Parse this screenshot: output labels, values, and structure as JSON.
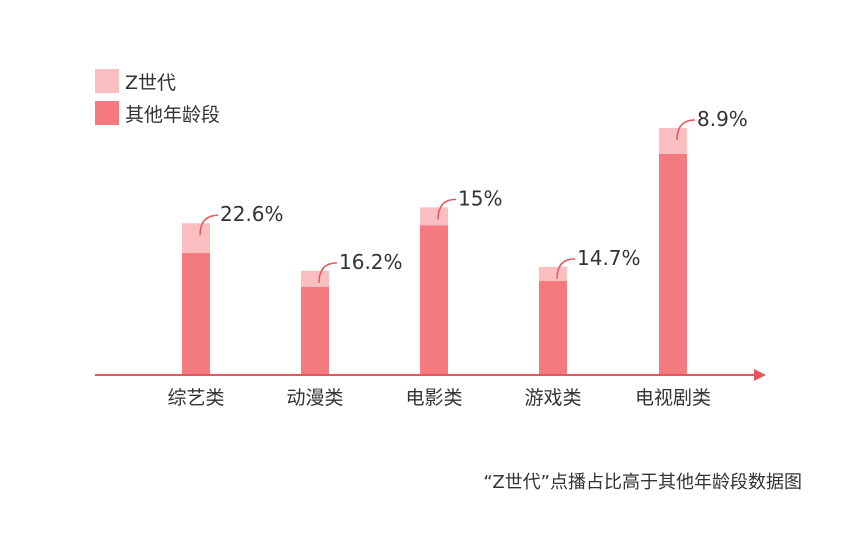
{
  "chart_data": {
    "type": "bar",
    "stacked": true,
    "categories": [
      "综艺类",
      "动漫类",
      "电影类",
      "游戏类",
      "电视剧类"
    ],
    "series": [
      {
        "name": "其他年龄段",
        "color": "#f57a80",
        "values": [
          61,
          44,
          75,
          47,
          111
        ]
      },
      {
        "name": "Z世代",
        "color": "#fbbfc2",
        "values": [
          15,
          8,
          9,
          7,
          13
        ]
      }
    ],
    "annotations": [
      "22.6%",
      "16.2%",
      "15%",
      "14.7%",
      "8.9%"
    ],
    "ylim": [
      0,
      126
    ],
    "grid": false,
    "legend_position": "top-left",
    "caption": "“Z世代”点播占比高于其他年龄段数据图"
  }
}
